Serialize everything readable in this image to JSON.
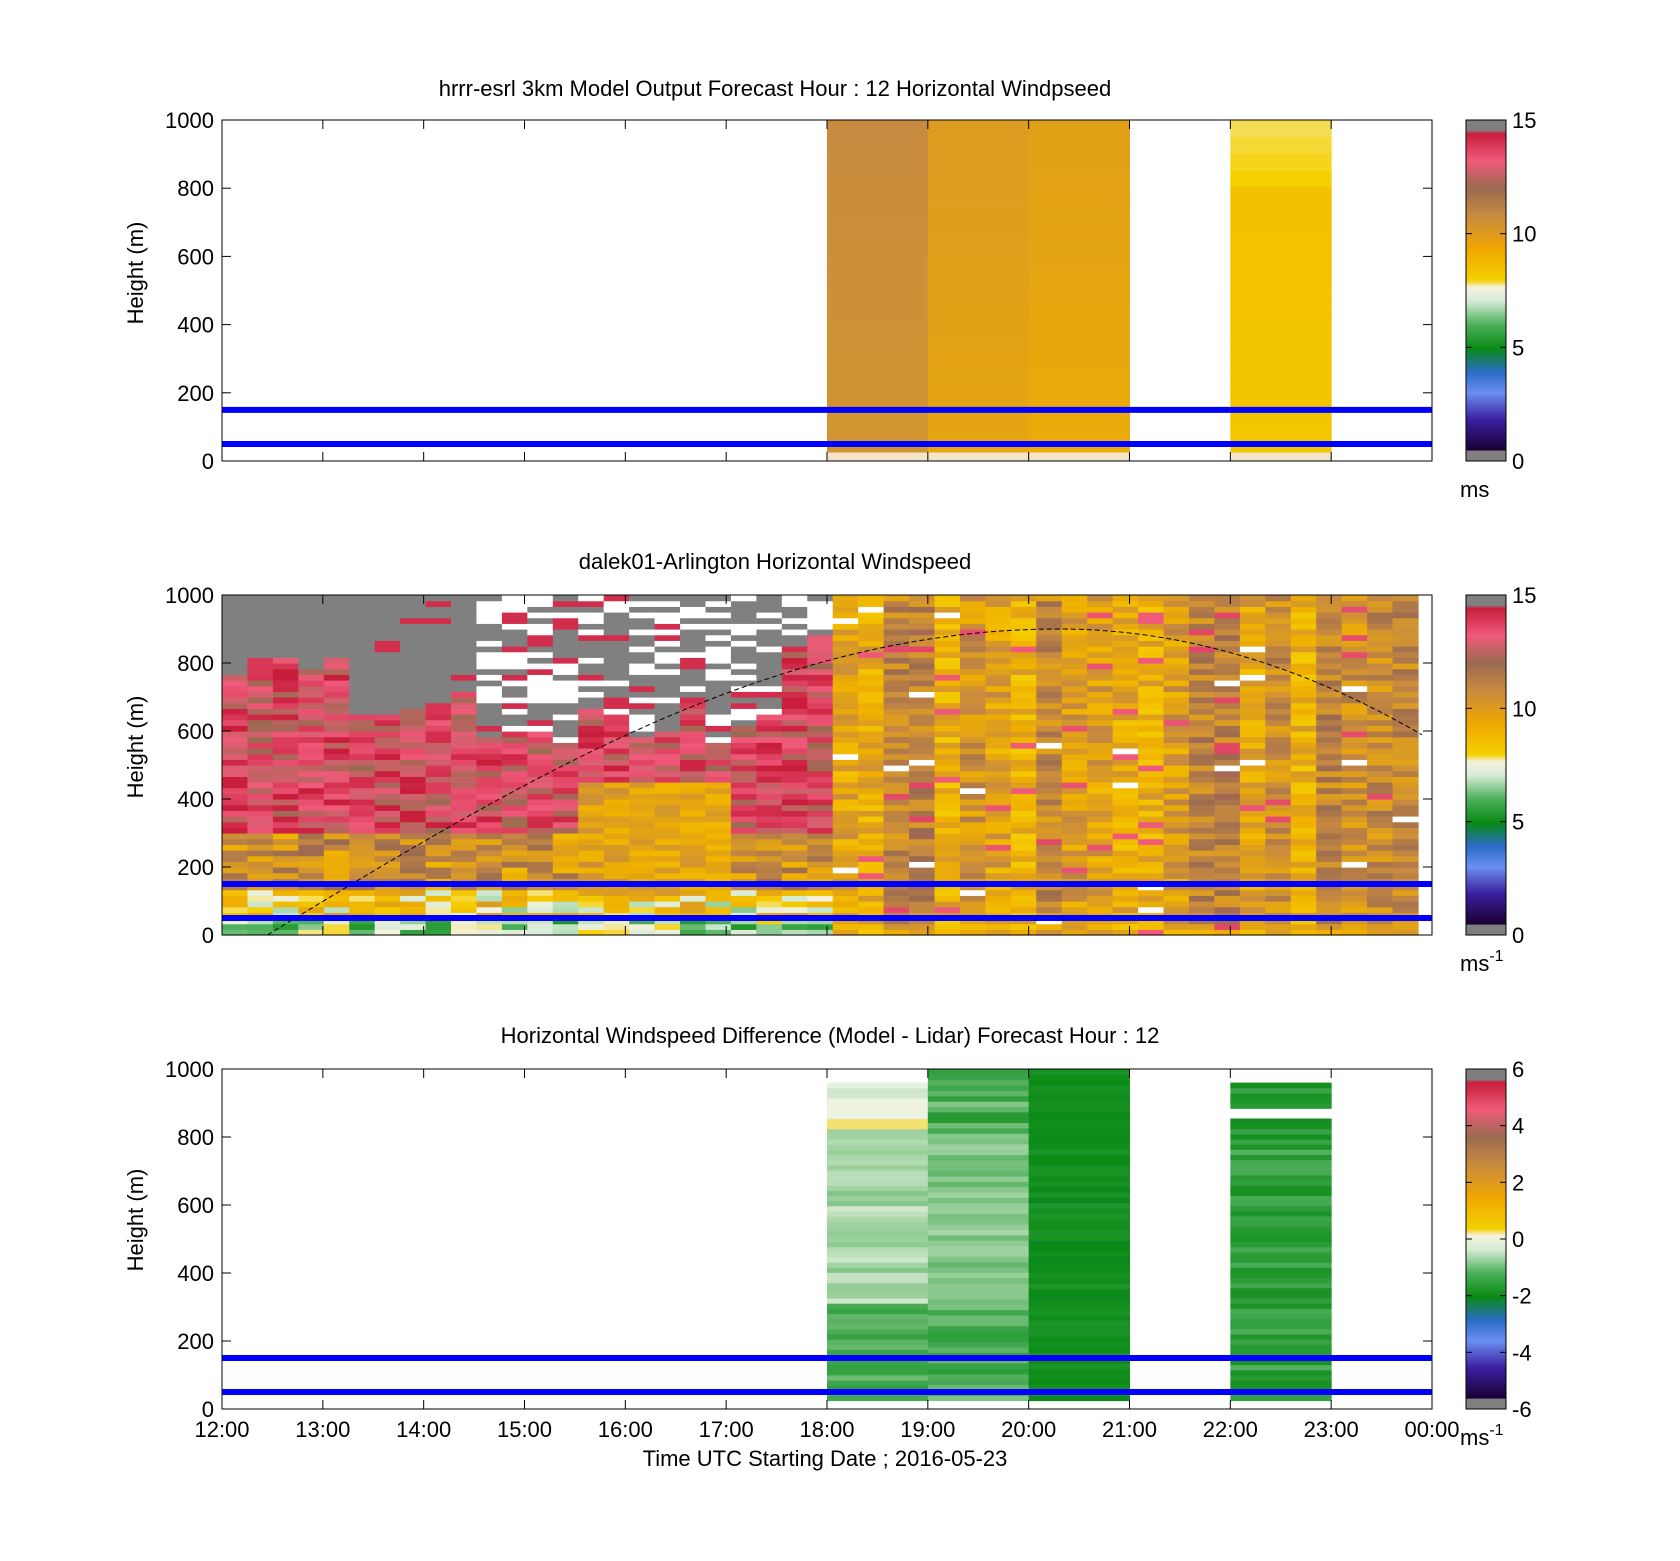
{
  "figure": {
    "xlabel": "Time UTC  Starting Date ; 2016-05-23"
  },
  "chart_data": [
    {
      "type": "heatmap",
      "title": "hrrr-esrl 3km Model Output   Forecast Hour : 12 Horizontal Windpseed",
      "ylabel": "Height (m)",
      "ylim": [
        0,
        1000
      ],
      "yticks": [
        "0",
        "200",
        "400",
        "600",
        "800",
        "1000"
      ],
      "x_start_hour": 12,
      "xlim_hours": [
        0,
        12
      ],
      "xticks": [
        "12:00",
        "13:00",
        "14:00",
        "15:00",
        "16:00",
        "17:00",
        "18:00",
        "19:00",
        "20:00",
        "21:00",
        "22:00",
        "23:00",
        "00:00"
      ],
      "show_xtick_labels": false,
      "blue_lines_m": [
        50,
        150
      ],
      "colorbar": {
        "min": 0,
        "max": 15,
        "ticks": [
          "0",
          "5",
          "10",
          "15"
        ],
        "unit": "ms",
        "unit_sup": ""
      },
      "colors": {
        "band": "#f0b21c",
        "dark": "#d89a22",
        "light": "#f6d45a"
      },
      "columns": [
        {
          "hour": "18:00",
          "value_ms": 10.6
        },
        {
          "hour": "19:00",
          "value_ms": 9.9
        },
        {
          "hour": "20:00",
          "value_ms": 9.7
        },
        {
          "hour": "22:00",
          "value_ms": 9.2
        }
      ]
    },
    {
      "type": "heatmap",
      "title": "dalek01-Arlington  Horizontal Windspeed",
      "ylabel": "Height (m)",
      "ylim": [
        0,
        1000
      ],
      "yticks": [
        "0",
        "200",
        "400",
        "600",
        "800",
        "1000"
      ],
      "x_start_hour": 12,
      "xlim_hours": [
        0,
        12
      ],
      "xticks": [
        "12:00",
        "13:00",
        "14:00",
        "15:00",
        "16:00",
        "17:00",
        "18:00",
        "19:00",
        "20:00",
        "21:00",
        "22:00",
        "23:00",
        "00:00"
      ],
      "show_xtick_labels": false,
      "blue_lines_m": [
        50,
        150
      ],
      "colorbar": {
        "min": 0,
        "max": 15,
        "ticks": [
          "0",
          "5",
          "10",
          "15"
        ],
        "unit": "ms",
        "unit_sup": "-1"
      },
      "boundary_layer_curve": {
        "peak_hour": 20.3,
        "peak_height_m": 900,
        "start_hour": 12.45
      },
      "colors": {
        "missing": "#808080",
        "strong": "#e0304e",
        "pink": "#f0607a",
        "brown": "#b07a3c",
        "gold": "#f0b21c",
        "green": "#2e9e3a"
      }
    },
    {
      "type": "heatmap",
      "title": "Horizontal Windspeed Difference (Model - Lidar) Forecast Hour : 12",
      "ylabel": "Height (m)",
      "ylim": [
        0,
        1000
      ],
      "yticks": [
        "0",
        "200",
        "400",
        "600",
        "800",
        "1000"
      ],
      "x_start_hour": 12,
      "xlim_hours": [
        0,
        12
      ],
      "xticks": [
        "12:00",
        "13:00",
        "14:00",
        "15:00",
        "16:00",
        "17:00",
        "18:00",
        "19:00",
        "20:00",
        "21:00",
        "22:00",
        "23:00",
        "00:00"
      ],
      "show_xtick_labels": true,
      "blue_lines_m": [
        50,
        150
      ],
      "colorbar": {
        "min": -6,
        "max": 6,
        "ticks": [
          "-6",
          "-4",
          "-2",
          "0",
          "2",
          "4",
          "6"
        ],
        "unit": "ms",
        "unit_sup": "-1"
      },
      "columns": [
        {
          "hour": "18:00",
          "value_ms": -1.6
        },
        {
          "hour": "19:00",
          "value_ms": -2.0
        },
        {
          "hour": "20:00",
          "value_ms": -3.0
        },
        {
          "hour": "22:00",
          "value_ms": -2.4
        }
      ]
    }
  ]
}
